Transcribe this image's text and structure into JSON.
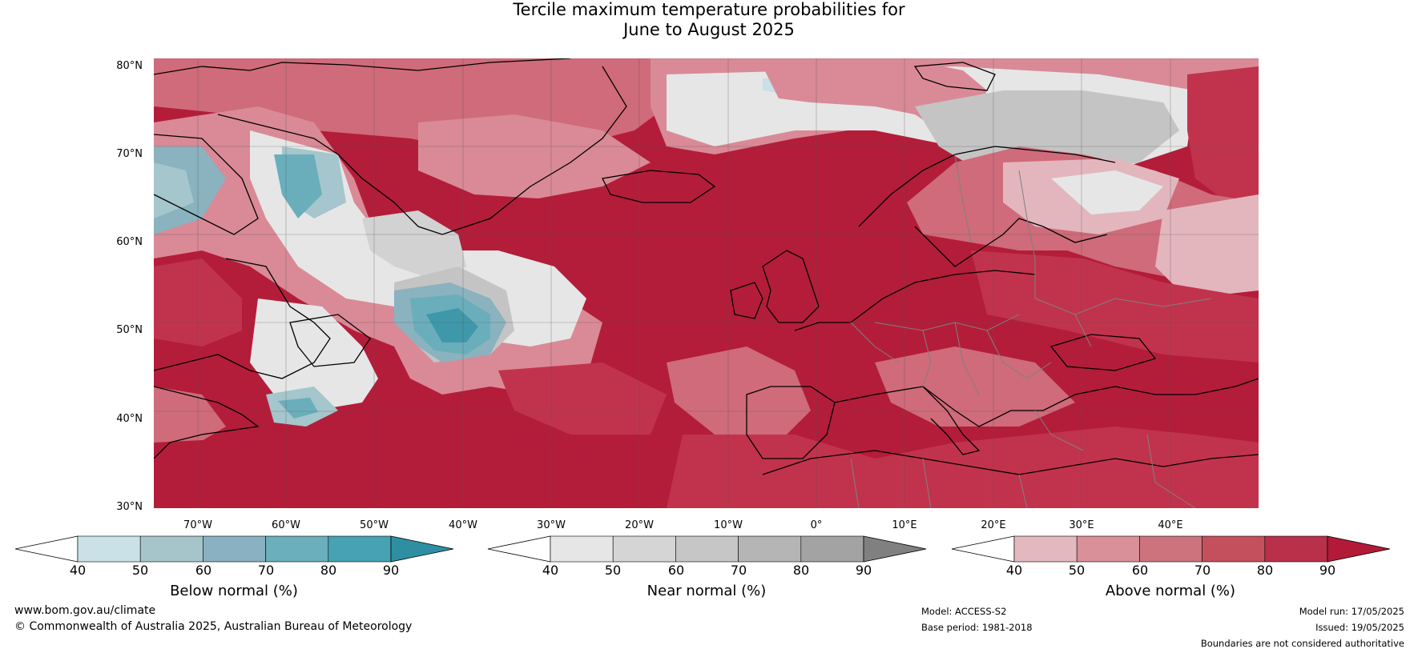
{
  "title": {
    "line1": "Tercile maximum temperature probabilities for",
    "line2": "June to August 2025"
  },
  "map": {
    "lat_labels": [
      "80°N",
      "70°N",
      "60°N",
      "50°N",
      "40°N",
      "30°N"
    ],
    "lon_labels": [
      "70°W",
      "60°W",
      "50°W",
      "40°W",
      "30°W",
      "20°W",
      "10°W",
      "0°",
      "10°E",
      "20°E",
      "30°E",
      "40°E"
    ],
    "colors": {
      "ocean_base": "#b31d3a",
      "above_80": "#c1334c",
      "above_70": "#cf6b7a",
      "above_60": "#d98a96",
      "above_50": "#e3b6bd",
      "near_50": "#e6e6e6",
      "near_60": "#d2d2d2",
      "near_70": "#c4c4c4",
      "below_50": "#c8e1e6",
      "below_60": "#a4c6cc",
      "below_70": "#8ab2bf",
      "below_80": "#6aaebb",
      "below_90": "#3f98aa",
      "coast": "#000000",
      "borders": "#808080",
      "gridlines": "#555555"
    }
  },
  "legends": [
    {
      "name": "below",
      "title": "Below normal (%)",
      "ticks": [
        "40",
        "50",
        "60",
        "70",
        "80",
        "90"
      ],
      "colors": [
        "#ffffff",
        "#c9e1e7",
        "#a6c5ca",
        "#89b1c1",
        "#6aafbb",
        "#47a2b3",
        "#2e8fa3"
      ]
    },
    {
      "name": "near",
      "title": "Near normal (%)",
      "ticks": [
        "40",
        "50",
        "60",
        "70",
        "80",
        "90"
      ],
      "colors": [
        "#ffffff",
        "#e6e6e6",
        "#d5d5d5",
        "#c6c6c6",
        "#b5b5b5",
        "#a3a3a3",
        "#808080"
      ]
    },
    {
      "name": "above",
      "title": "Above normal (%)",
      "ticks": [
        "40",
        "50",
        "60",
        "70",
        "80",
        "90"
      ],
      "colors": [
        "#ffffff",
        "#e3b8bf",
        "#d99099",
        "#cc737e",
        "#c4505e",
        "#b8304a",
        "#b31a38"
      ]
    }
  ],
  "footer": {
    "url": "www.bom.gov.au/climate",
    "copyright": "© Commonwealth of Australia 2025, Australian Bureau of Meteorology",
    "model": "Model: ACCESS-S2",
    "base_period": "Base period: 1981-2018",
    "model_run": "Model run: 17/05/2025",
    "issued": "Issued: 19/05/2025",
    "disclaimer": "Boundaries are not considered authoritative"
  }
}
